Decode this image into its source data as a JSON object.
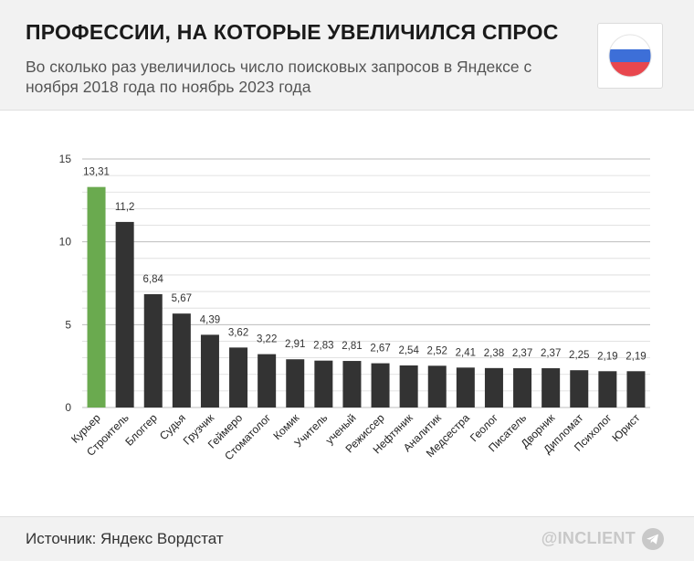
{
  "header": {
    "title": "ПРОФЕССИИ, НА КОТОРЫЕ УВЕЛИЧИЛСЯ СПРОС",
    "subtitle": "Во сколько раз увеличилось число поисковых запросов в Яндексе с ноября 2018 года по ноябрь 2023 года",
    "flag_icon": "russia-flag-icon",
    "flag_colors": [
      "#ffffff",
      "#3d6fd8",
      "#e8474e"
    ]
  },
  "footer": {
    "source": "Источник: Яндекс Вордстат",
    "brand": "@INCLIENT",
    "brand_icon": "telegram-icon"
  },
  "colors": {
    "bar_default": "#333333",
    "bar_highlight": "#6aaa4f",
    "grid": "#d9d9d9",
    "axis_text": "#333333"
  },
  "chart_data": {
    "type": "bar",
    "categories": [
      "Курьер",
      "Строитель",
      "Блоггер",
      "Судья",
      "Грузчик",
      "Геймеро",
      "Стоматолог",
      "Комик",
      "Учитель",
      "ученый",
      "Режиссер",
      "Нефтяник",
      "Аналитик",
      "Медсестра",
      "Геолог",
      "Писатель",
      "Дворник",
      "Дипломат",
      "Психолог",
      "Юрист"
    ],
    "values": [
      13.31,
      11.2,
      6.84,
      5.67,
      4.39,
      3.62,
      3.22,
      2.91,
      2.83,
      2.81,
      2.67,
      2.54,
      2.52,
      2.41,
      2.38,
      2.37,
      2.37,
      2.25,
      2.19,
      2.19
    ],
    "value_labels": [
      "13,31",
      "11,2",
      "6,84",
      "5,67",
      "4,39",
      "3,62",
      "3,22",
      "2,91",
      "2,83",
      "2,81",
      "2,67",
      "2,54",
      "2,52",
      "2,41",
      "2,38",
      "2,37",
      "2,37",
      "2,25",
      "2,19",
      "2,19"
    ],
    "highlight_index": 0,
    "yticks": [
      0,
      5,
      10,
      15
    ],
    "ylim": [
      0,
      15
    ],
    "grid": true,
    "legend": "none"
  }
}
